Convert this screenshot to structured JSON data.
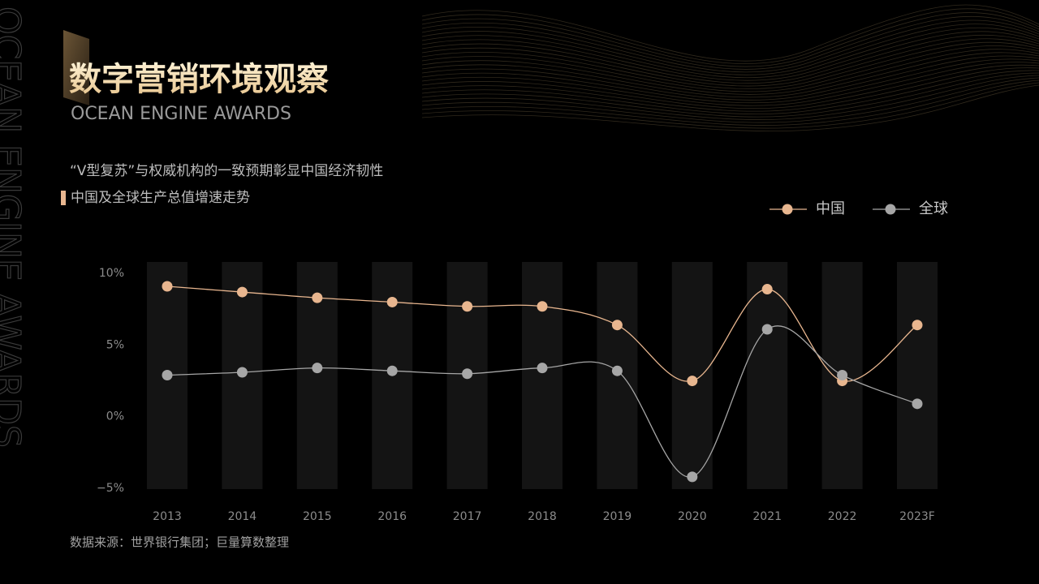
{
  "side_text": "OCEAN ENGINE AWARDS",
  "header": {
    "title": "数字营销环境观察",
    "subtitle": "OCEAN ENGINE AWARDS"
  },
  "headline": "“V型复苏”与权威机构的一致预期彰显中国经济韧性",
  "section_label": "中国及全球生产总值增速走势",
  "source": "数据来源：世界银行集团；巨量算数整理",
  "chart_data": {
    "type": "line",
    "categories": [
      "2013",
      "2014",
      "2015",
      "2016",
      "2017",
      "2018",
      "2019",
      "2020",
      "2021",
      "2022",
      "2023F"
    ],
    "series": [
      {
        "name": "中国",
        "color": "#e8b68f",
        "values": [
          9.1,
          8.7,
          8.3,
          8.0,
          7.7,
          7.7,
          6.4,
          2.5,
          8.9,
          2.5,
          6.4
        ]
      },
      {
        "name": "全球",
        "color": "#a6a6a6",
        "values": [
          2.9,
          3.1,
          3.4,
          3.2,
          3.0,
          3.4,
          3.2,
          -4.2,
          6.1,
          2.9,
          0.9
        ]
      }
    ],
    "ylim": [
      -5,
      10.8
    ],
    "yticks": [
      {
        "value": -5,
        "label": "−5%"
      },
      {
        "value": 0,
        "label": "0%"
      },
      {
        "value": 5,
        "label": "5%"
      },
      {
        "value": 10,
        "label": "10%"
      }
    ],
    "legend": "top-right",
    "smooth": true
  }
}
